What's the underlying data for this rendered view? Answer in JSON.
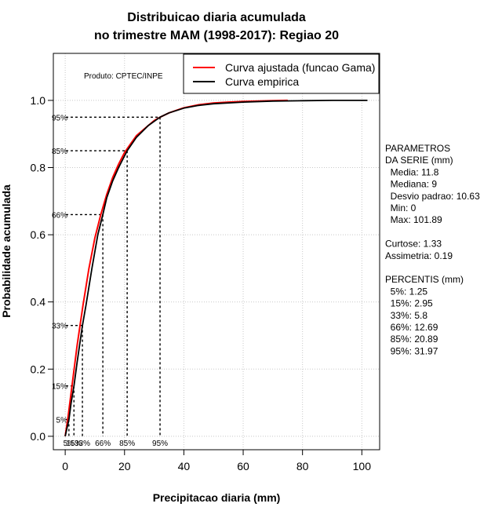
{
  "chart_data": {
    "type": "line",
    "title": [
      "Distribuicao diaria acumulada",
      "no trimestre MAM (1998-2017): Regiao 20"
    ],
    "xlabel": "Precipitacao diaria (mm)",
    "ylabel": "Probabilidade acumulada",
    "xlim": [
      -4,
      106
    ],
    "ylim": [
      -0.04,
      1.14
    ],
    "x_ticks": [
      "0",
      "20",
      "40",
      "60",
      "80",
      "100"
    ],
    "y_ticks": [
      "0.0",
      "0.2",
      "0.4",
      "0.6",
      "0.8",
      "1.0"
    ],
    "grid": true,
    "credit": "Produto: CPTEC/INPE",
    "legend": {
      "placement": "top-right",
      "entries": [
        {
          "label": "Curva ajustada (funcao Gama)",
          "color": "#ff0000"
        },
        {
          "label": "Curva empirica",
          "color": "#000000"
        }
      ]
    },
    "series": [
      {
        "name": "Curva ajustada (funcao Gama)",
        "color": "#ff0000",
        "x": [
          0,
          1,
          2,
          3,
          4,
          6,
          8,
          10,
          12,
          14,
          16,
          18,
          20,
          22,
          24,
          26,
          28,
          30,
          32,
          35,
          40,
          45,
          50,
          55,
          60,
          70,
          75
        ],
        "y": [
          0,
          0.06,
          0.13,
          0.2,
          0.27,
          0.39,
          0.5,
          0.59,
          0.66,
          0.72,
          0.77,
          0.81,
          0.845,
          0.87,
          0.895,
          0.91,
          0.925,
          0.94,
          0.95,
          0.963,
          0.978,
          0.987,
          0.992,
          0.995,
          0.997,
          0.999,
          1.0
        ]
      },
      {
        "name": "Curva empirica",
        "color": "#000000",
        "x": [
          0,
          0.5,
          1.25,
          2,
          2.95,
          4,
          5.8,
          7,
          9,
          11,
          12.69,
          14,
          16,
          18,
          20.89,
          24,
          28,
          31.97,
          35,
          40,
          45,
          50,
          60,
          70,
          80,
          90,
          101.89
        ],
        "y": [
          0,
          0.02,
          0.05,
          0.1,
          0.15,
          0.22,
          0.33,
          0.39,
          0.5,
          0.6,
          0.66,
          0.71,
          0.76,
          0.8,
          0.85,
          0.89,
          0.925,
          0.95,
          0.963,
          0.977,
          0.985,
          0.99,
          0.995,
          0.998,
          0.999,
          1.0,
          1.0
        ]
      }
    ],
    "percentile_markers": [
      {
        "label": "5%",
        "p": 0.05,
        "x": 1.25
      },
      {
        "label": "15%",
        "p": 0.15,
        "x": 2.95
      },
      {
        "label": "33%",
        "p": 0.33,
        "x": 5.8
      },
      {
        "label": "66%",
        "p": 0.66,
        "x": 12.69
      },
      {
        "label": "85%",
        "p": 0.85,
        "x": 20.89
      },
      {
        "label": "95%",
        "p": 0.95,
        "x": 31.97
      }
    ],
    "stats": {
      "lines": [
        "PARAMETROS",
        "DA SERIE (mm)",
        "  Media: 11.8",
        "  Mediana: 9",
        "  Desvio padrao: 10.63",
        "  Min: 0",
        "  Max: 101.89",
        "",
        "Curtose: 1.33",
        "Assimetria: 0.19",
        "",
        "PERCENTIS (mm)",
        "  5%: 1.25",
        "  15%: 2.95",
        "  33%: 5.8",
        "  66%: 12.69",
        "  85%: 20.89",
        "  95%: 31.97"
      ]
    }
  }
}
